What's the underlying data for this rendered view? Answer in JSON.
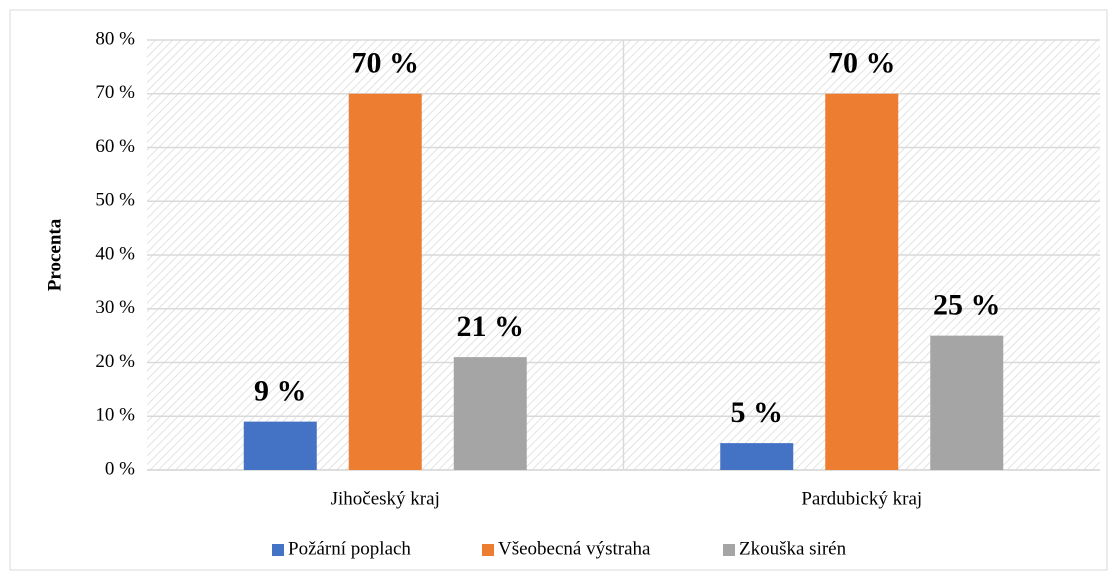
{
  "chart_data": {
    "type": "bar",
    "categories": [
      "Jihočeský kraj",
      "Pardubický kraj"
    ],
    "series": [
      {
        "name": "Požární poplach",
        "color": "#4472c4",
        "values": [
          9,
          5
        ],
        "value_labels": [
          "9 %",
          "5 %"
        ]
      },
      {
        "name": "Všeobecná výstraha",
        "color": "#ed7d31",
        "values": [
          70,
          70
        ],
        "value_labels": [
          "70 %",
          "70 %"
        ]
      },
      {
        "name": "Zkouška sirén",
        "color": "#a5a5a5",
        "values": [
          21,
          25
        ],
        "value_labels": [
          "21 %",
          "25 %"
        ]
      }
    ],
    "y_label": "Procenta",
    "ylim": [
      0,
      80
    ],
    "yticks": [
      {
        "value": 0,
        "label": "0 %"
      },
      {
        "value": 10,
        "label": "10 %"
      },
      {
        "value": 20,
        "label": "20 %"
      },
      {
        "value": 30,
        "label": "30 %"
      },
      {
        "value": 40,
        "label": "40 %"
      },
      {
        "value": 50,
        "label": "50 %"
      },
      {
        "value": 60,
        "label": "60 %"
      },
      {
        "value": 70,
        "label": "70 %"
      },
      {
        "value": 80,
        "label": "80 %"
      }
    ],
    "grid": true,
    "legend": "bottom"
  }
}
